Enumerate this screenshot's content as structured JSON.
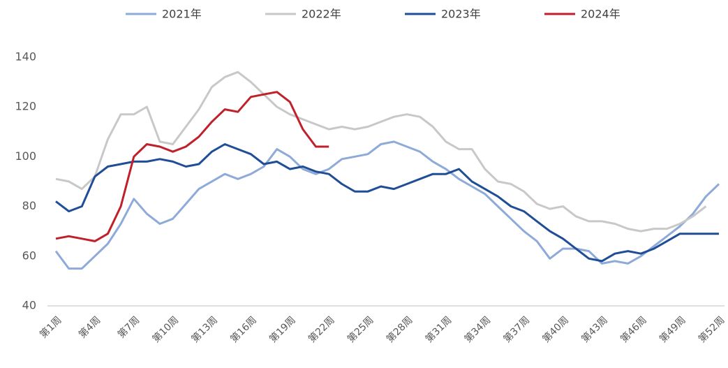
{
  "chart_data": {
    "type": "line",
    "categories": [
      "第1周",
      null,
      null,
      "第4周",
      null,
      null,
      "第7周",
      null,
      null,
      "第10周",
      null,
      null,
      "第13周",
      null,
      null,
      "第16周",
      null,
      null,
      "第19周",
      null,
      null,
      "第22周",
      null,
      null,
      "第25周",
      null,
      null,
      "第28周",
      null,
      null,
      "第31周",
      null,
      null,
      "第34周",
      null,
      null,
      "第37周",
      null,
      null,
      "第40周",
      null,
      null,
      "第43周",
      null,
      null,
      "第46周",
      null,
      null,
      "第49周",
      null,
      null,
      "第52周"
    ],
    "series": [
      {
        "name": "2021年",
        "color": "#8eaad8",
        "values": [
          62,
          55,
          55,
          60,
          65,
          73,
          83,
          77,
          73,
          75,
          81,
          87,
          90,
          93,
          91,
          93,
          96,
          103,
          100,
          95,
          93,
          95,
          99,
          100,
          101,
          105,
          106,
          104,
          102,
          98,
          95,
          91,
          88,
          85,
          80,
          75,
          70,
          66,
          59,
          63,
          63,
          62,
          57,
          58,
          57,
          60,
          64,
          68,
          72,
          77,
          84,
          89
        ]
      },
      {
        "name": "2022年",
        "color": "#c8c8c8",
        "values": [
          91,
          90,
          87,
          92,
          107,
          117,
          117,
          120,
          106,
          105,
          112,
          119,
          128,
          132,
          134,
          130,
          125,
          120,
          117,
          115,
          113,
          111,
          112,
          111,
          112,
          114,
          116,
          117,
          116,
          112,
          106,
          103,
          103,
          95,
          90,
          89,
          86,
          81,
          79,
          80,
          76,
          74,
          74,
          73,
          71,
          70,
          71,
          71,
          73,
          76,
          80,
          null
        ]
      },
      {
        "name": "2023年",
        "color": "#1f4e96",
        "values": [
          82,
          78,
          80,
          92,
          96,
          97,
          98,
          98,
          99,
          98,
          96,
          97,
          102,
          105,
          103,
          101,
          97,
          98,
          95,
          96,
          94,
          93,
          89,
          86,
          86,
          88,
          87,
          89,
          91,
          93,
          93,
          95,
          90,
          87,
          84,
          80,
          78,
          74,
          70,
          67,
          63,
          59,
          58,
          61,
          62,
          61,
          63,
          66,
          69,
          69,
          69,
          69
        ]
      },
      {
        "name": "2024年",
        "color": "#c0202a",
        "values": [
          67,
          68,
          67,
          66,
          69,
          80,
          100,
          105,
          104,
          102,
          104,
          108,
          114,
          119,
          118,
          124,
          125,
          126,
          122,
          111,
          104,
          104,
          null,
          null,
          null,
          null,
          null,
          null,
          null,
          null,
          null,
          null,
          null,
          null,
          null,
          null,
          null,
          null,
          null,
          null,
          null,
          null,
          null,
          null,
          null,
          null,
          null,
          null,
          null,
          null,
          null,
          null
        ]
      }
    ],
    "ylim": [
      40,
      145
    ],
    "yticks": [
      40,
      60,
      80,
      100,
      120,
      140
    ],
    "grid": false,
    "legend": "top"
  }
}
